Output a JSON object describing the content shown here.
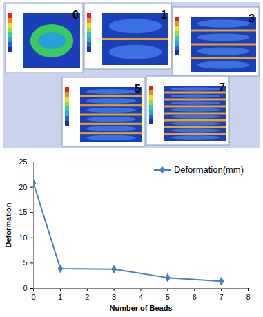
{
  "chart_data": {
    "type": "line",
    "x": [
      0,
      1,
      3,
      5,
      7
    ],
    "series": [
      {
        "name": "Deformation(mm)",
        "color": "#4a7ebb",
        "marker": "diamond",
        "line_style": "solid",
        "values": [
          20.8,
          3.9,
          3.8,
          2.1,
          1.4
        ]
      }
    ],
    "xlabel": "Number of Beads",
    "ylabel": "Deformation",
    "xlim": [
      0,
      8
    ],
    "xticks": [
      0,
      1,
      2,
      3,
      4,
      5,
      6,
      7,
      8
    ],
    "ylim": [
      0,
      25
    ],
    "yticks": [
      0,
      5,
      10,
      15,
      20,
      25
    ],
    "grid": false,
    "legend": "top-right"
  },
  "panels": [
    "0",
    "1",
    "3",
    "5",
    "7"
  ]
}
